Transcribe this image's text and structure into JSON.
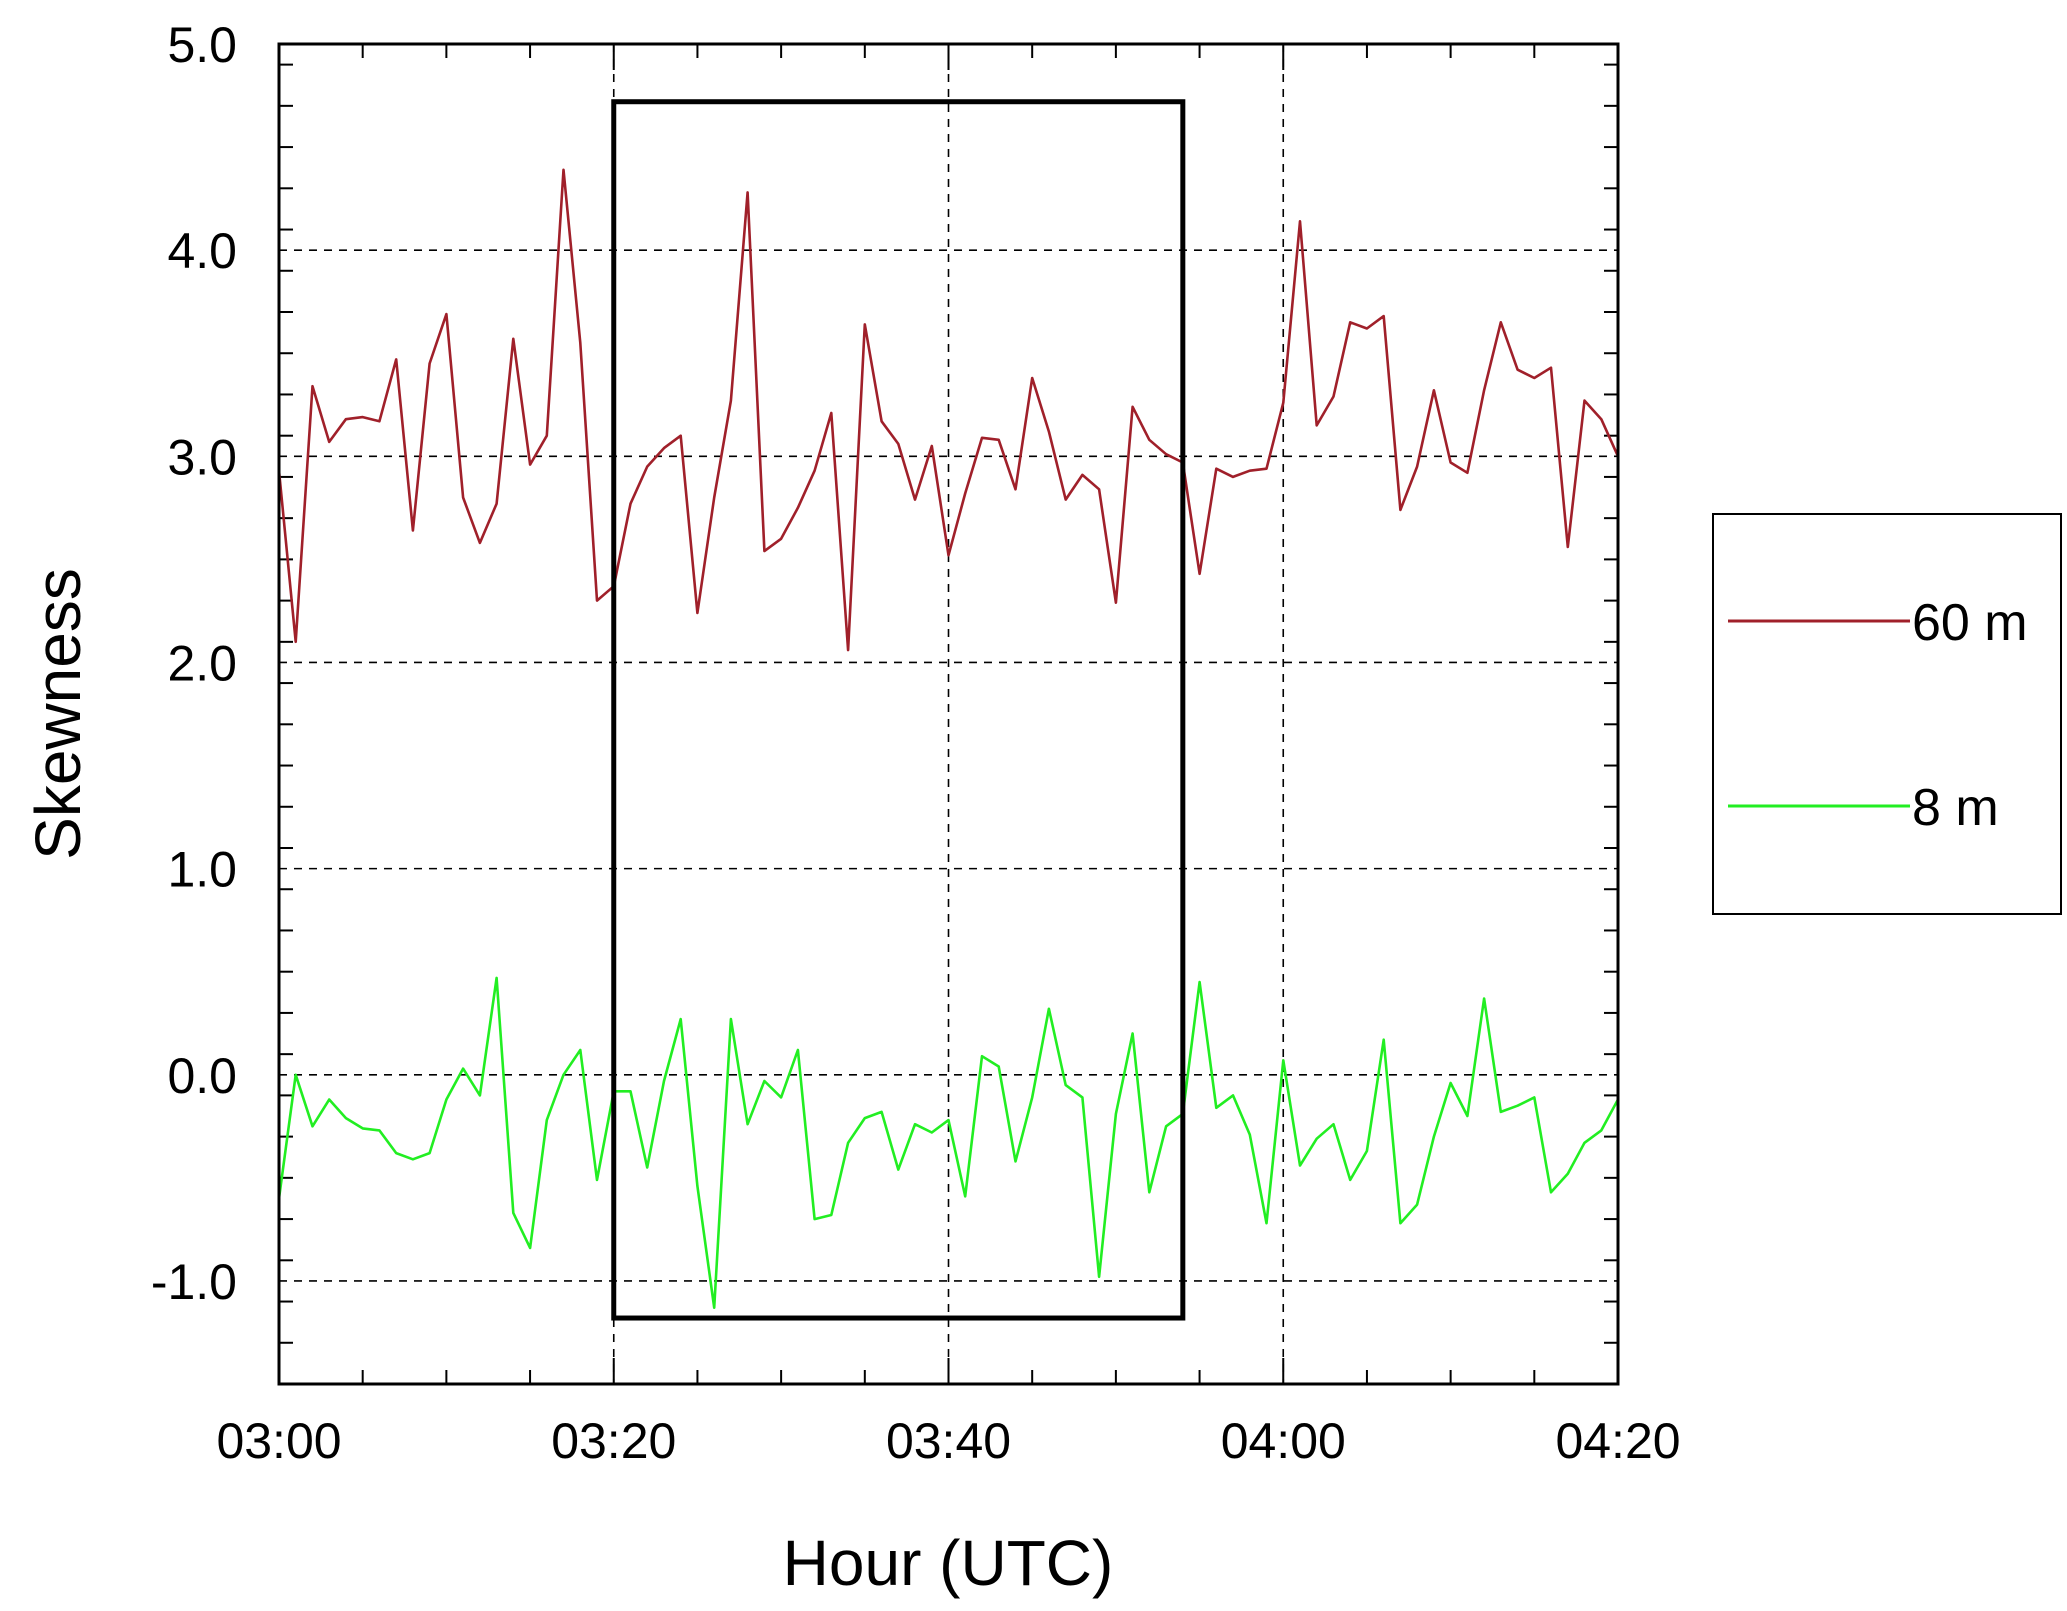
{
  "chart_data": {
    "type": "line",
    "title": "",
    "xlabel": "Hour (UTC)",
    "ylabel": "Skewness",
    "xlim": [
      "03:00",
      "04:20"
    ],
    "ylim": [
      -1.5,
      5.0
    ],
    "x_ticks": [
      "03:00",
      "03:20",
      "03:40",
      "04:00",
      "04:20"
    ],
    "y_ticks": [
      "-1.0",
      "0.0",
      "1.0",
      "2.0",
      "3.0",
      "4.0",
      "5.0"
    ],
    "x_unit_note": "x values are minutes after 03:00",
    "grid": "dashed at 03:20, 03:40, 04:00 and y = -1, 0, 1, 2, 3, 4",
    "highlight_box": {
      "x_start": "03:20",
      "x_end": "03:54",
      "y_min": -1.18,
      "y_max": 4.72
    },
    "legend_placement": "right",
    "series": [
      {
        "name": "60 m",
        "color": "#a0202a",
        "x": [
          0,
          1,
          2,
          3,
          4,
          5,
          6,
          7,
          8,
          9,
          10,
          11,
          12,
          13,
          14,
          15,
          16,
          17,
          18,
          19,
          20,
          21,
          22,
          23,
          24,
          25,
          26,
          27,
          28,
          29,
          30,
          31,
          32,
          33,
          34,
          35,
          36,
          37,
          38,
          39,
          40,
          41,
          42,
          43,
          44,
          45,
          46,
          47,
          48,
          49,
          50,
          51,
          52,
          53,
          54,
          55,
          56,
          57,
          58,
          59,
          60,
          61,
          62,
          63,
          64,
          65,
          66,
          67,
          68,
          69,
          70,
          71,
          72,
          73,
          74,
          75,
          76,
          77,
          78,
          79,
          80
        ],
        "values": [
          2.93,
          2.1,
          3.34,
          3.07,
          3.18,
          3.19,
          3.17,
          3.47,
          2.64,
          3.45,
          3.69,
          2.8,
          2.58,
          2.77,
          3.57,
          2.96,
          3.1,
          4.39,
          3.55,
          2.3,
          2.37,
          2.77,
          2.95,
          3.04,
          3.1,
          2.24,
          2.8,
          3.27,
          4.28,
          2.54,
          2.6,
          2.75,
          2.93,
          3.21,
          2.06,
          3.64,
          3.17,
          3.06,
          2.79,
          3.05,
          2.52,
          2.82,
          3.09,
          3.08,
          2.84,
          3.38,
          3.12,
          2.79,
          2.91,
          2.84,
          2.29,
          3.24,
          3.08,
          3.01,
          2.97,
          2.43,
          2.94,
          2.9,
          2.93,
          2.94,
          3.26,
          4.14,
          3.15,
          3.29,
          3.65,
          3.62,
          3.68,
          2.74,
          2.95,
          3.32,
          2.97,
          2.92,
          3.32,
          3.65,
          3.42,
          3.38,
          3.43,
          2.56,
          3.27,
          3.18,
          3.0
        ]
      },
      {
        "name": "8 m",
        "color": "#22ee22",
        "x": [
          0,
          1,
          2,
          3,
          4,
          5,
          6,
          7,
          8,
          9,
          10,
          11,
          12,
          13,
          14,
          15,
          16,
          17,
          18,
          19,
          20,
          21,
          22,
          23,
          24,
          25,
          26,
          27,
          28,
          29,
          30,
          31,
          32,
          33,
          34,
          35,
          36,
          37,
          38,
          39,
          40,
          41,
          42,
          43,
          44,
          45,
          46,
          47,
          48,
          49,
          50,
          51,
          52,
          53,
          54,
          55,
          56,
          57,
          58,
          59,
          60,
          61,
          62,
          63,
          64,
          65,
          66,
          67,
          68,
          69,
          70,
          71,
          72,
          73,
          74,
          75,
          76,
          77,
          78,
          79,
          80
        ],
        "values": [
          -0.6,
          0.0,
          -0.25,
          -0.12,
          -0.21,
          -0.26,
          -0.27,
          -0.38,
          -0.41,
          -0.38,
          -0.12,
          0.03,
          -0.1,
          0.47,
          -0.67,
          -0.84,
          -0.22,
          0.0,
          0.12,
          -0.51,
          -0.08,
          -0.08,
          -0.45,
          -0.03,
          0.27,
          -0.54,
          -1.13,
          0.27,
          -0.24,
          -0.03,
          -0.11,
          0.12,
          -0.7,
          -0.68,
          -0.33,
          -0.21,
          -0.18,
          -0.46,
          -0.24,
          -0.28,
          -0.22,
          -0.59,
          0.09,
          0.04,
          -0.42,
          -0.11,
          0.32,
          -0.05,
          -0.11,
          -0.98,
          -0.19,
          0.2,
          -0.57,
          -0.25,
          -0.19,
          0.45,
          -0.16,
          -0.1,
          -0.29,
          -0.72,
          0.07,
          -0.44,
          -0.31,
          -0.24,
          -0.51,
          -0.37,
          0.17,
          -0.72,
          -0.63,
          -0.3,
          -0.04,
          -0.2,
          0.37,
          -0.18,
          -0.15,
          -0.11,
          -0.57,
          -0.48,
          -0.33,
          -0.27,
          -0.12
        ]
      }
    ]
  }
}
